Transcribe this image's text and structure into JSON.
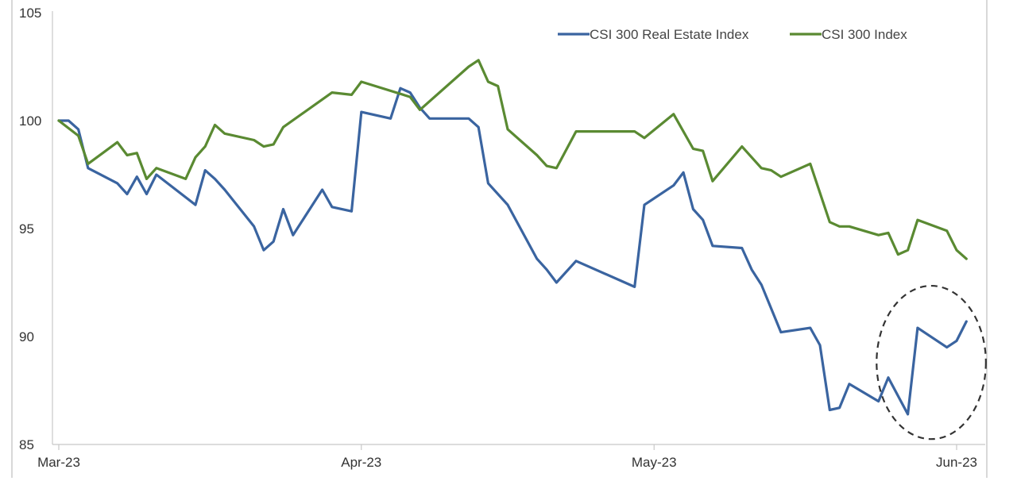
{
  "chart_data": {
    "type": "line",
    "title": "",
    "xlabel": "",
    "ylabel": "",
    "ylim": [
      85,
      105
    ],
    "y_ticks": [
      85,
      90,
      95,
      100,
      105
    ],
    "x_ticks": [
      {
        "label": "Mar-23",
        "day": 0
      },
      {
        "label": "Apr-23",
        "day": 31
      },
      {
        "label": "May-23",
        "day": 61
      },
      {
        "label": "Jun-23",
        "day": 92
      }
    ],
    "legend_position": "top-right",
    "grid": false,
    "series": [
      {
        "name": "CSI 300 Real Estate Index",
        "color": "#3a64a0",
        "points": [
          [
            0,
            100
          ],
          [
            1,
            100
          ],
          [
            2,
            99.6
          ],
          [
            3,
            97.8
          ],
          [
            6,
            97.1
          ],
          [
            7,
            96.6
          ],
          [
            8,
            97.4
          ],
          [
            9,
            96.6
          ],
          [
            10,
            97.5
          ],
          [
            14,
            96.1
          ],
          [
            15,
            97.7
          ],
          [
            16,
            97.3
          ],
          [
            17,
            96.8
          ],
          [
            20,
            95.1
          ],
          [
            21,
            94
          ],
          [
            22,
            94.4
          ],
          [
            23,
            95.9
          ],
          [
            24,
            94.7
          ],
          [
            27,
            96.8
          ],
          [
            28,
            96
          ],
          [
            30,
            95.8
          ],
          [
            31,
            100.4
          ],
          [
            34,
            100.1
          ],
          [
            35,
            101.5
          ],
          [
            36,
            101.3
          ],
          [
            37,
            100.6
          ],
          [
            38,
            100.1
          ],
          [
            42,
            100.1
          ],
          [
            43,
            99.7
          ],
          [
            44,
            97.1
          ],
          [
            46,
            96.1
          ],
          [
            49,
            93.6
          ],
          [
            50,
            93.1
          ],
          [
            51,
            92.5
          ],
          [
            53,
            93.5
          ],
          [
            59,
            92.3
          ],
          [
            60,
            96.1
          ],
          [
            63,
            97
          ],
          [
            64,
            97.6
          ],
          [
            65,
            95.9
          ],
          [
            66,
            95.4
          ],
          [
            67,
            94.2
          ],
          [
            70,
            94.1
          ],
          [
            71,
            93.1
          ],
          [
            72,
            92.4
          ],
          [
            74,
            90.2
          ],
          [
            77,
            90.4
          ],
          [
            78,
            89.6
          ],
          [
            79,
            86.6
          ],
          [
            80,
            86.7
          ],
          [
            81,
            87.8
          ],
          [
            84,
            87
          ],
          [
            85,
            88.1
          ],
          [
            87,
            86.4
          ],
          [
            88,
            90.4
          ],
          [
            91,
            89.5
          ],
          [
            92,
            89.8
          ],
          [
            93,
            90.7
          ]
        ]
      },
      {
        "name": "CSI 300 Index",
        "color": "#5a8a32",
        "points": [
          [
            0,
            100
          ],
          [
            2,
            99.3
          ],
          [
            3,
            98
          ],
          [
            6,
            99
          ],
          [
            7,
            98.4
          ],
          [
            8,
            98.5
          ],
          [
            9,
            97.3
          ],
          [
            10,
            97.8
          ],
          [
            13,
            97.3
          ],
          [
            14,
            98.3
          ],
          [
            15,
            98.8
          ],
          [
            16,
            99.8
          ],
          [
            17,
            99.4
          ],
          [
            20,
            99.1
          ],
          [
            21,
            98.8
          ],
          [
            22,
            98.9
          ],
          [
            23,
            99.7
          ],
          [
            28,
            101.3
          ],
          [
            30,
            101.2
          ],
          [
            31,
            101.8
          ],
          [
            36,
            101.1
          ],
          [
            37,
            100.5
          ],
          [
            42,
            102.5
          ],
          [
            43,
            102.8
          ],
          [
            44,
            101.8
          ],
          [
            45,
            101.6
          ],
          [
            46,
            99.6
          ],
          [
            49,
            98.4
          ],
          [
            50,
            97.9
          ],
          [
            51,
            97.8
          ],
          [
            53,
            99.5
          ],
          [
            59,
            99.5
          ],
          [
            60,
            99.2
          ],
          [
            63,
            100.3
          ],
          [
            65,
            98.7
          ],
          [
            66,
            98.6
          ],
          [
            67,
            97.2
          ],
          [
            70,
            98.8
          ],
          [
            72,
            97.8
          ],
          [
            73,
            97.7
          ],
          [
            74,
            97.4
          ],
          [
            77,
            98
          ],
          [
            79,
            95.3
          ],
          [
            80,
            95.1
          ],
          [
            81,
            95.1
          ],
          [
            84,
            94.7
          ],
          [
            85,
            94.8
          ],
          [
            86,
            93.8
          ],
          [
            87,
            94
          ],
          [
            88,
            95.4
          ],
          [
            91,
            94.9
          ],
          [
            92,
            94
          ],
          [
            93,
            93.6
          ]
        ]
      }
    ],
    "annotations": [
      {
        "type": "dashed-ellipse",
        "center": [
          89.4,
          88.8
        ],
        "radius_days": 5.6,
        "radius_value": 3.55
      }
    ]
  }
}
